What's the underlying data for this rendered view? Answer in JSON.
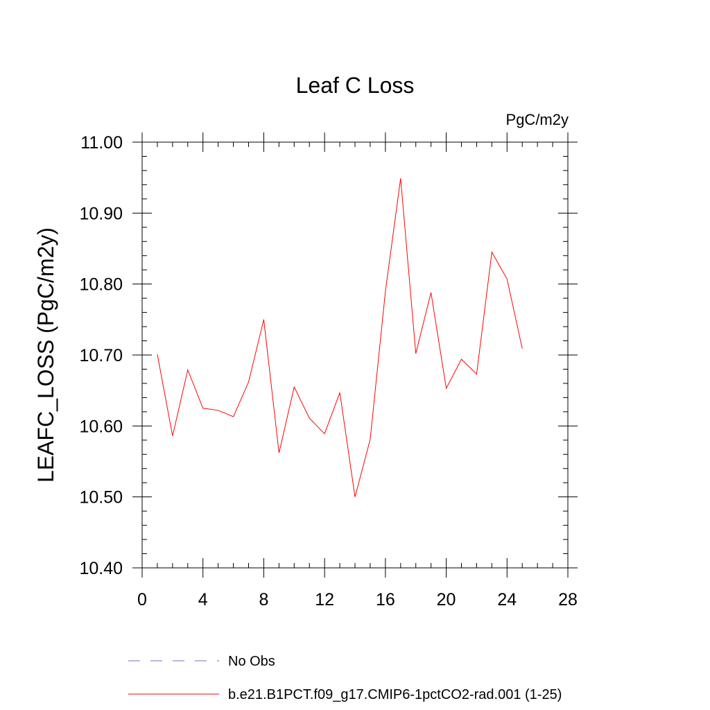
{
  "chart_data": {
    "type": "line",
    "title": "Leaf C Loss",
    "units_label": "PgC/m2y",
    "ylabel": "LEAFC_LOSS  (PgC/m2y)",
    "xlabel": "",
    "xlim": [
      0,
      28
    ],
    "ylim": [
      10.4,
      11.0
    ],
    "x_ticks": [
      0,
      4,
      8,
      12,
      16,
      20,
      24,
      28
    ],
    "x_tick_labels": [
      "0",
      "4",
      "8",
      "12",
      "16",
      "20",
      "24",
      "28"
    ],
    "y_ticks": [
      10.4,
      10.5,
      10.6,
      10.7,
      10.8,
      10.9,
      11.0
    ],
    "y_tick_labels": [
      "10.40",
      "10.50",
      "10.60",
      "10.70",
      "10.80",
      "10.90",
      "11.00"
    ],
    "grid": false,
    "legend_position": "bottom",
    "series": [
      {
        "name": "b.e21.B1PCT.f09_g17.CMIP6-1pctCO2-rad.001 (1-25)",
        "color": "#ff0000",
        "style": "solid",
        "x": [
          1,
          2,
          3,
          4,
          5,
          6,
          7,
          8,
          9,
          10,
          11,
          12,
          13,
          14,
          15,
          16,
          17,
          18,
          19,
          20,
          21,
          22,
          23,
          24,
          25
        ],
        "y": [
          10.701,
          10.586,
          10.679,
          10.625,
          10.622,
          10.613,
          10.662,
          10.75,
          10.562,
          10.655,
          10.611,
          10.589,
          10.647,
          10.5,
          10.581,
          10.79,
          10.949,
          10.702,
          10.788,
          10.653,
          10.694,
          10.673,
          10.845,
          10.807,
          10.709
        ]
      }
    ],
    "legend": [
      {
        "label": "No Obs",
        "color": "#7070c0",
        "style": "dashed"
      },
      {
        "label": "b.e21.B1PCT.f09_g17.CMIP6-1pctCO2-rad.001 (1-25)",
        "color": "#ff0000",
        "style": "solid"
      }
    ]
  }
}
